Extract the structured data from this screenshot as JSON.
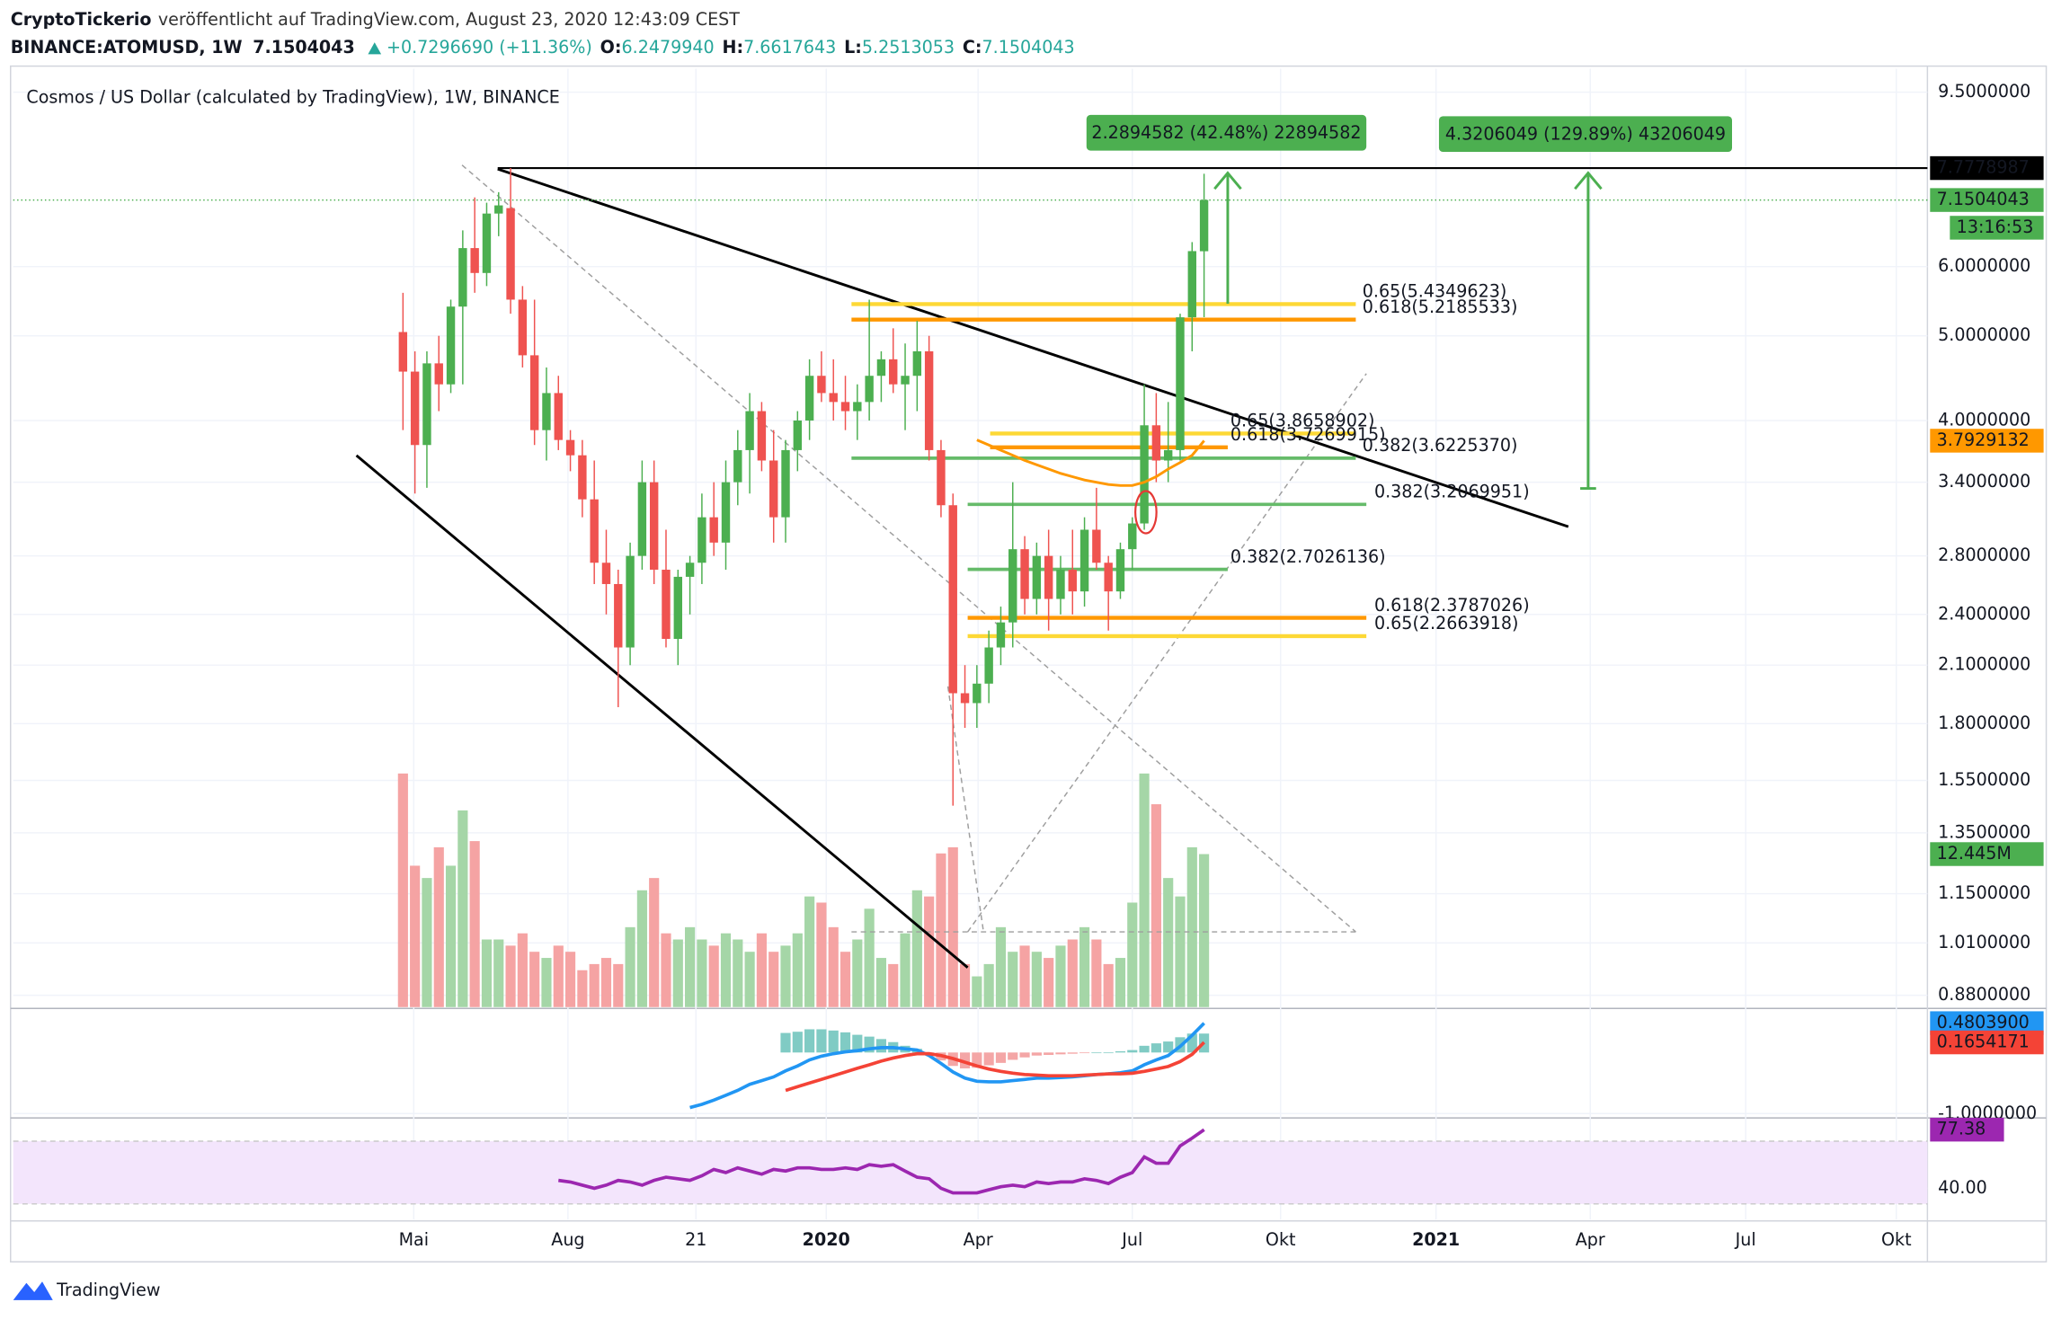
{
  "header": {
    "author": "CryptoTickerio",
    "published": "veröffentlicht auf TradingView.com, August 23, 2020 12:43:09 CEST",
    "symbol": "BINANCE:ATOMUSD, 1W",
    "last": "7.1504043",
    "change": "+0.7296690 (+11.36%)",
    "ohlc": [
      {
        "key": "O:",
        "value": "6.2479940"
      },
      {
        "key": "H:",
        "value": "7.6617643"
      },
      {
        "key": "L:",
        "value": "5.2513053"
      },
      {
        "key": "C:",
        "value": "7.1504043"
      }
    ]
  },
  "footer": {
    "brand": "TradingView"
  },
  "chart_data": [
    {
      "type": "candlestick",
      "title": "Cosmos / US Dollar (calculated by TradingView), 1W, BINANCE",
      "log_scale": true,
      "grid": true,
      "xlim": [
        -32.6,
        127.5
      ],
      "xticks": [
        {
          "value": 0.9,
          "label": "Mai"
        },
        {
          "value": 13.8,
          "label": "Aug"
        },
        {
          "value": 24.5,
          "label": "21"
        },
        {
          "value": 35.4,
          "label": "2020"
        },
        {
          "value": 48.1,
          "label": "Apr"
        },
        {
          "value": 61,
          "label": "Jul"
        },
        {
          "value": 73.4,
          "label": "Okt"
        },
        {
          "value": 86.4,
          "label": "2021"
        },
        {
          "value": 99.3,
          "label": "Apr"
        },
        {
          "value": 112.3,
          "label": "Jul"
        },
        {
          "value": 124.9,
          "label": "Okt"
        }
      ],
      "ylim": [
        0.853,
        10.0
      ],
      "yticks": [
        {
          "value": 9.5,
          "label": "9.5000000"
        },
        {
          "value": 6,
          "label": "6.0000000"
        },
        {
          "value": 5,
          "label": "5.0000000"
        },
        {
          "value": 4,
          "label": "4.0000000"
        },
        {
          "value": 3.4,
          "label": "3.4000000"
        },
        {
          "value": 2.8,
          "label": "2.8000000"
        },
        {
          "value": 2.4,
          "label": "2.4000000"
        },
        {
          "value": 2.1,
          "label": "2.1000000"
        },
        {
          "value": 1.8,
          "label": "1.8000000"
        },
        {
          "value": 1.55,
          "label": "1.5500000"
        },
        {
          "value": 1.35,
          "label": "1.3500000"
        },
        {
          "value": 1.15,
          "label": "1.1500000"
        },
        {
          "value": 1.01,
          "label": "1.0100000"
        },
        {
          "value": 0.88,
          "label": "0.8800000"
        }
      ],
      "candles": {
        "up_color": "#4caf50",
        "down_color": "#ef5350",
        "open": [
          5.05,
          4.55,
          3.75,
          4.65,
          4.4,
          5.4,
          6.3,
          5.9,
          6.9,
          7.0,
          5.5,
          4.75,
          3.9,
          4.3,
          3.8,
          3.65,
          3.25,
          2.75,
          2.6,
          2.2,
          2.8,
          3.4,
          2.7,
          2.25,
          2.65,
          2.75,
          3.1,
          2.9,
          3.4,
          3.7,
          4.1,
          3.6,
          3.1,
          3.7,
          4.0,
          4.5,
          4.3,
          4.2,
          4.1,
          4.2,
          4.5,
          4.7,
          4.4,
          4.5,
          4.8,
          3.7,
          3.2,
          1.95,
          1.9,
          2.0,
          2.2,
          2.35,
          2.85,
          2.5,
          2.8,
          2.5,
          2.7,
          2.55,
          3.0,
          2.75,
          2.55,
          2.85,
          3.05,
          3.95,
          3.6,
          3.7,
          5.25,
          6.247994
        ],
        "high": [
          5.6,
          4.8,
          4.8,
          5.0,
          5.5,
          6.6,
          7.2,
          7.1,
          7.3,
          7.78,
          5.7,
          5.5,
          4.6,
          4.5,
          3.9,
          3.8,
          3.6,
          3.0,
          2.7,
          2.9,
          3.6,
          3.6,
          3.0,
          2.7,
          2.8,
          3.3,
          3.4,
          3.6,
          3.9,
          4.3,
          4.2,
          3.9,
          3.8,
          4.1,
          4.7,
          4.8,
          4.7,
          4.5,
          4.4,
          5.5,
          4.8,
          5.1,
          4.9,
          5.2,
          5.0,
          3.8,
          3.3,
          2.1,
          2.1,
          2.3,
          2.45,
          3.4,
          2.95,
          2.9,
          3.0,
          2.8,
          3.0,
          3.1,
          3.35,
          2.8,
          2.9,
          3.1,
          4.4,
          4.3,
          4.2,
          5.3,
          6.4,
          7.6617643
        ],
        "low": [
          3.9,
          3.3,
          3.35,
          4.1,
          4.3,
          4.4,
          5.6,
          5.7,
          6.5,
          5.3,
          4.6,
          3.75,
          3.6,
          3.7,
          3.5,
          3.1,
          2.6,
          2.4,
          1.88,
          2.1,
          2.7,
          2.6,
          2.2,
          2.1,
          2.4,
          2.6,
          2.8,
          2.7,
          3.2,
          3.3,
          3.5,
          2.9,
          2.9,
          3.5,
          3.8,
          4.2,
          4.0,
          3.9,
          3.8,
          4.0,
          4.2,
          4.3,
          3.9,
          4.1,
          3.6,
          3.1,
          1.45,
          1.78,
          1.78,
          1.9,
          2.1,
          2.2,
          2.4,
          2.4,
          2.3,
          2.4,
          2.4,
          2.45,
          2.7,
          2.3,
          2.5,
          2.7,
          3.0,
          3.4,
          3.4,
          3.6,
          4.8,
          5.2513053
        ],
        "close": [
          4.55,
          3.75,
          4.65,
          4.4,
          5.4,
          6.3,
          5.9,
          6.9,
          7.05,
          5.5,
          4.75,
          3.9,
          4.3,
          3.8,
          3.65,
          3.25,
          2.75,
          2.6,
          2.2,
          2.8,
          3.4,
          2.7,
          2.25,
          2.65,
          2.75,
          3.1,
          2.9,
          3.4,
          3.7,
          4.1,
          3.6,
          3.1,
          3.7,
          4.0,
          4.5,
          4.3,
          4.2,
          4.1,
          4.2,
          4.5,
          4.7,
          4.4,
          4.5,
          4.8,
          3.7,
          3.2,
          1.95,
          1.9,
          2.0,
          2.2,
          2.35,
          2.85,
          2.5,
          2.8,
          2.5,
          2.7,
          2.55,
          3.0,
          2.75,
          2.55,
          2.85,
          3.05,
          3.95,
          3.6,
          3.7,
          5.25,
          6.25,
          7.1504043
        ]
      },
      "volume": {
        "ylim": [
          0,
          76
        ],
        "up_color": "#a5d6a7",
        "down_color": "#f5a3a3",
        "label_color": "#4caf50",
        "values": [
          19.0,
          11.5,
          10.5,
          13.0,
          11.5,
          16.0,
          13.5,
          5.5,
          5.5,
          5.0,
          6.0,
          4.5,
          4.0,
          5.0,
          4.5,
          3.0,
          3.5,
          4.0,
          3.5,
          6.5,
          9.5,
          10.5,
          6.0,
          5.5,
          6.5,
          5.5,
          5.0,
          6.0,
          5.5,
          4.5,
          6.0,
          4.5,
          5.0,
          6.0,
          9.0,
          8.5,
          6.5,
          4.5,
          5.5,
          8.0,
          4.0,
          3.5,
          6.0,
          9.5,
          9.0,
          12.5,
          13.0,
          3.5,
          2.5,
          3.5,
          6.5,
          4.5,
          5.0,
          4.5,
          4.0,
          5.0,
          5.5,
          6.5,
          5.5,
          3.5,
          4.0,
          8.5,
          19.0,
          16.5,
          10.5,
          9.0,
          13.0,
          12.445
        ],
        "last_label": {
          "value": 12.445,
          "label": "12.445M"
        }
      },
      "moving_average": {
        "color": "#ff9800",
        "values": [
          null,
          null,
          null,
          null,
          null,
          null,
          null,
          null,
          null,
          null,
          null,
          null,
          null,
          null,
          null,
          null,
          null,
          null,
          null,
          null,
          null,
          null,
          null,
          null,
          null,
          null,
          null,
          null,
          null,
          null,
          null,
          null,
          null,
          null,
          null,
          null,
          null,
          null,
          null,
          null,
          null,
          null,
          null,
          null,
          null,
          null,
          null,
          null,
          3.8,
          3.75,
          3.7,
          3.65,
          3.6,
          3.56,
          3.52,
          3.48,
          3.45,
          3.42,
          3.4,
          3.38,
          3.37,
          3.37,
          3.4,
          3.45,
          3.52,
          3.58,
          3.65,
          3.7929132
        ],
        "last_label": {
          "value": 3.7929132,
          "label": "3.7929132"
        }
      },
      "high_level": {
        "value": 7.7778987,
        "label": "7.7778987",
        "color": "#000000"
      },
      "last_price": {
        "value": 7.1504043,
        "label": "7.1504043",
        "countdown": "13:16:53",
        "color": "#4caf50"
      },
      "fib_levels": [
        {
          "label": "0.65(5.4349623)",
          "value": 5.4349623,
          "color": "#fdd835"
        },
        {
          "label": "0.618(5.2185533)",
          "value": 5.2185533,
          "color": "#ff9800"
        },
        {
          "label": "0.65(3.8658902)",
          "value": 3.8658902,
          "color": "#fdd835"
        },
        {
          "label": "0.618(3.7269915)",
          "value": 3.7269915,
          "color": "#ff9800"
        },
        {
          "label": "0.382(3.6225370)",
          "value": 3.622537,
          "color": "#66bb6a"
        },
        {
          "label": "0.382(3.2069951)",
          "value": 3.2069951,
          "color": "#66bb6a"
        },
        {
          "label": "0.382(2.7026136)",
          "value": 2.7026136,
          "color": "#66bb6a"
        },
        {
          "label": "0.618(2.3787026)",
          "value": 2.3787026,
          "color": "#ff9800"
        },
        {
          "label": "0.65(2.2663918)",
          "value": 2.2663918,
          "color": "#fdd835"
        }
      ],
      "measurements": [
        "2.2894582 (42.48%) 22894582",
        "4.3206049 (129.89%) 43206049"
      ]
    },
    {
      "type": "line",
      "ylim": [
        -1.05,
        0.7
      ],
      "yticks": [
        {
          "value": -1,
          "label": "-1.0000000"
        }
      ],
      "series": [
        {
          "color": "#2196f3",
          "values": [
            null,
            null,
            null,
            null,
            null,
            null,
            null,
            null,
            null,
            null,
            null,
            null,
            null,
            null,
            null,
            null,
            null,
            null,
            null,
            null,
            null,
            null,
            null,
            null,
            -0.9,
            -0.85,
            -0.78,
            -0.7,
            -0.62,
            -0.52,
            -0.46,
            -0.4,
            -0.3,
            -0.22,
            -0.12,
            -0.06,
            -0.02,
            0.01,
            0.03,
            0.06,
            0.08,
            0.08,
            0.06,
            0.04,
            -0.05,
            -0.18,
            -0.32,
            -0.42,
            -0.47,
            -0.48,
            -0.48,
            -0.46,
            -0.44,
            -0.42,
            -0.42,
            -0.41,
            -0.4,
            -0.38,
            -0.36,
            -0.35,
            -0.33,
            -0.3,
            -0.2,
            -0.12,
            -0.05,
            0.1,
            0.28,
            0.48039
          ],
          "last_label": {
            "value": 0.48039,
            "label": "0.4803900"
          }
        },
        {
          "color": "#f44336",
          "values": [
            null,
            null,
            null,
            null,
            null,
            null,
            null,
            null,
            null,
            null,
            null,
            null,
            null,
            null,
            null,
            null,
            null,
            null,
            null,
            null,
            null,
            null,
            null,
            null,
            null,
            null,
            null,
            null,
            null,
            null,
            null,
            null,
            -0.62,
            -0.56,
            -0.5,
            -0.44,
            -0.38,
            -0.32,
            -0.26,
            -0.2,
            -0.14,
            -0.09,
            -0.05,
            -0.02,
            -0.02,
            -0.05,
            -0.1,
            -0.16,
            -0.22,
            -0.27,
            -0.31,
            -0.34,
            -0.36,
            -0.37,
            -0.38,
            -0.38,
            -0.38,
            -0.37,
            -0.36,
            -0.35,
            -0.35,
            -0.34,
            -0.31,
            -0.27,
            -0.23,
            -0.15,
            -0.03,
            0.1654171
          ],
          "last_label": {
            "value": 0.1654171,
            "label": "0.1654171"
          }
        }
      ],
      "histogram": {
        "color_positive": "#80cbc4",
        "color_negative": "#f4a6a6",
        "values": [
          null,
          null,
          null,
          null,
          null,
          null,
          null,
          null,
          null,
          null,
          null,
          null,
          null,
          null,
          null,
          null,
          null,
          null,
          null,
          null,
          null,
          null,
          null,
          null,
          null,
          null,
          null,
          null,
          null,
          null,
          null,
          null,
          0.32,
          0.34,
          0.38,
          0.38,
          0.36,
          0.33,
          0.29,
          0.26,
          0.22,
          0.17,
          0.11,
          0.06,
          -0.03,
          -0.13,
          -0.22,
          -0.26,
          -0.25,
          -0.21,
          -0.17,
          -0.12,
          -0.08,
          -0.05,
          -0.04,
          -0.03,
          -0.02,
          -0.01,
          0.0,
          0.0,
          0.02,
          0.04,
          0.11,
          0.15,
          0.18,
          0.25,
          0.31,
          0.31
        ]
      }
    },
    {
      "type": "line",
      "ylim": [
        20,
        84
      ],
      "yticks": [
        {
          "value": 40,
          "label": "40.00"
        }
      ],
      "band": [
        30,
        70
      ],
      "band_color": "#f3e5fc",
      "series": [
        {
          "color": "#9c27b0",
          "values": [
            null,
            null,
            null,
            null,
            null,
            null,
            null,
            null,
            null,
            null,
            null,
            null,
            null,
            45,
            44,
            42,
            40,
            42,
            45,
            44,
            42,
            45,
            47,
            46,
            45,
            48,
            52,
            50,
            53,
            51,
            49,
            52,
            51,
            53,
            53,
            52,
            52,
            53,
            52,
            55,
            54,
            55,
            51,
            47,
            46,
            40,
            37,
            37,
            37,
            39,
            41,
            42,
            41,
            44,
            43,
            44,
            44,
            46,
            45,
            43,
            47,
            50,
            60,
            56,
            56,
            67,
            72,
            77.38
          ]
        }
      ]
    }
  ]
}
